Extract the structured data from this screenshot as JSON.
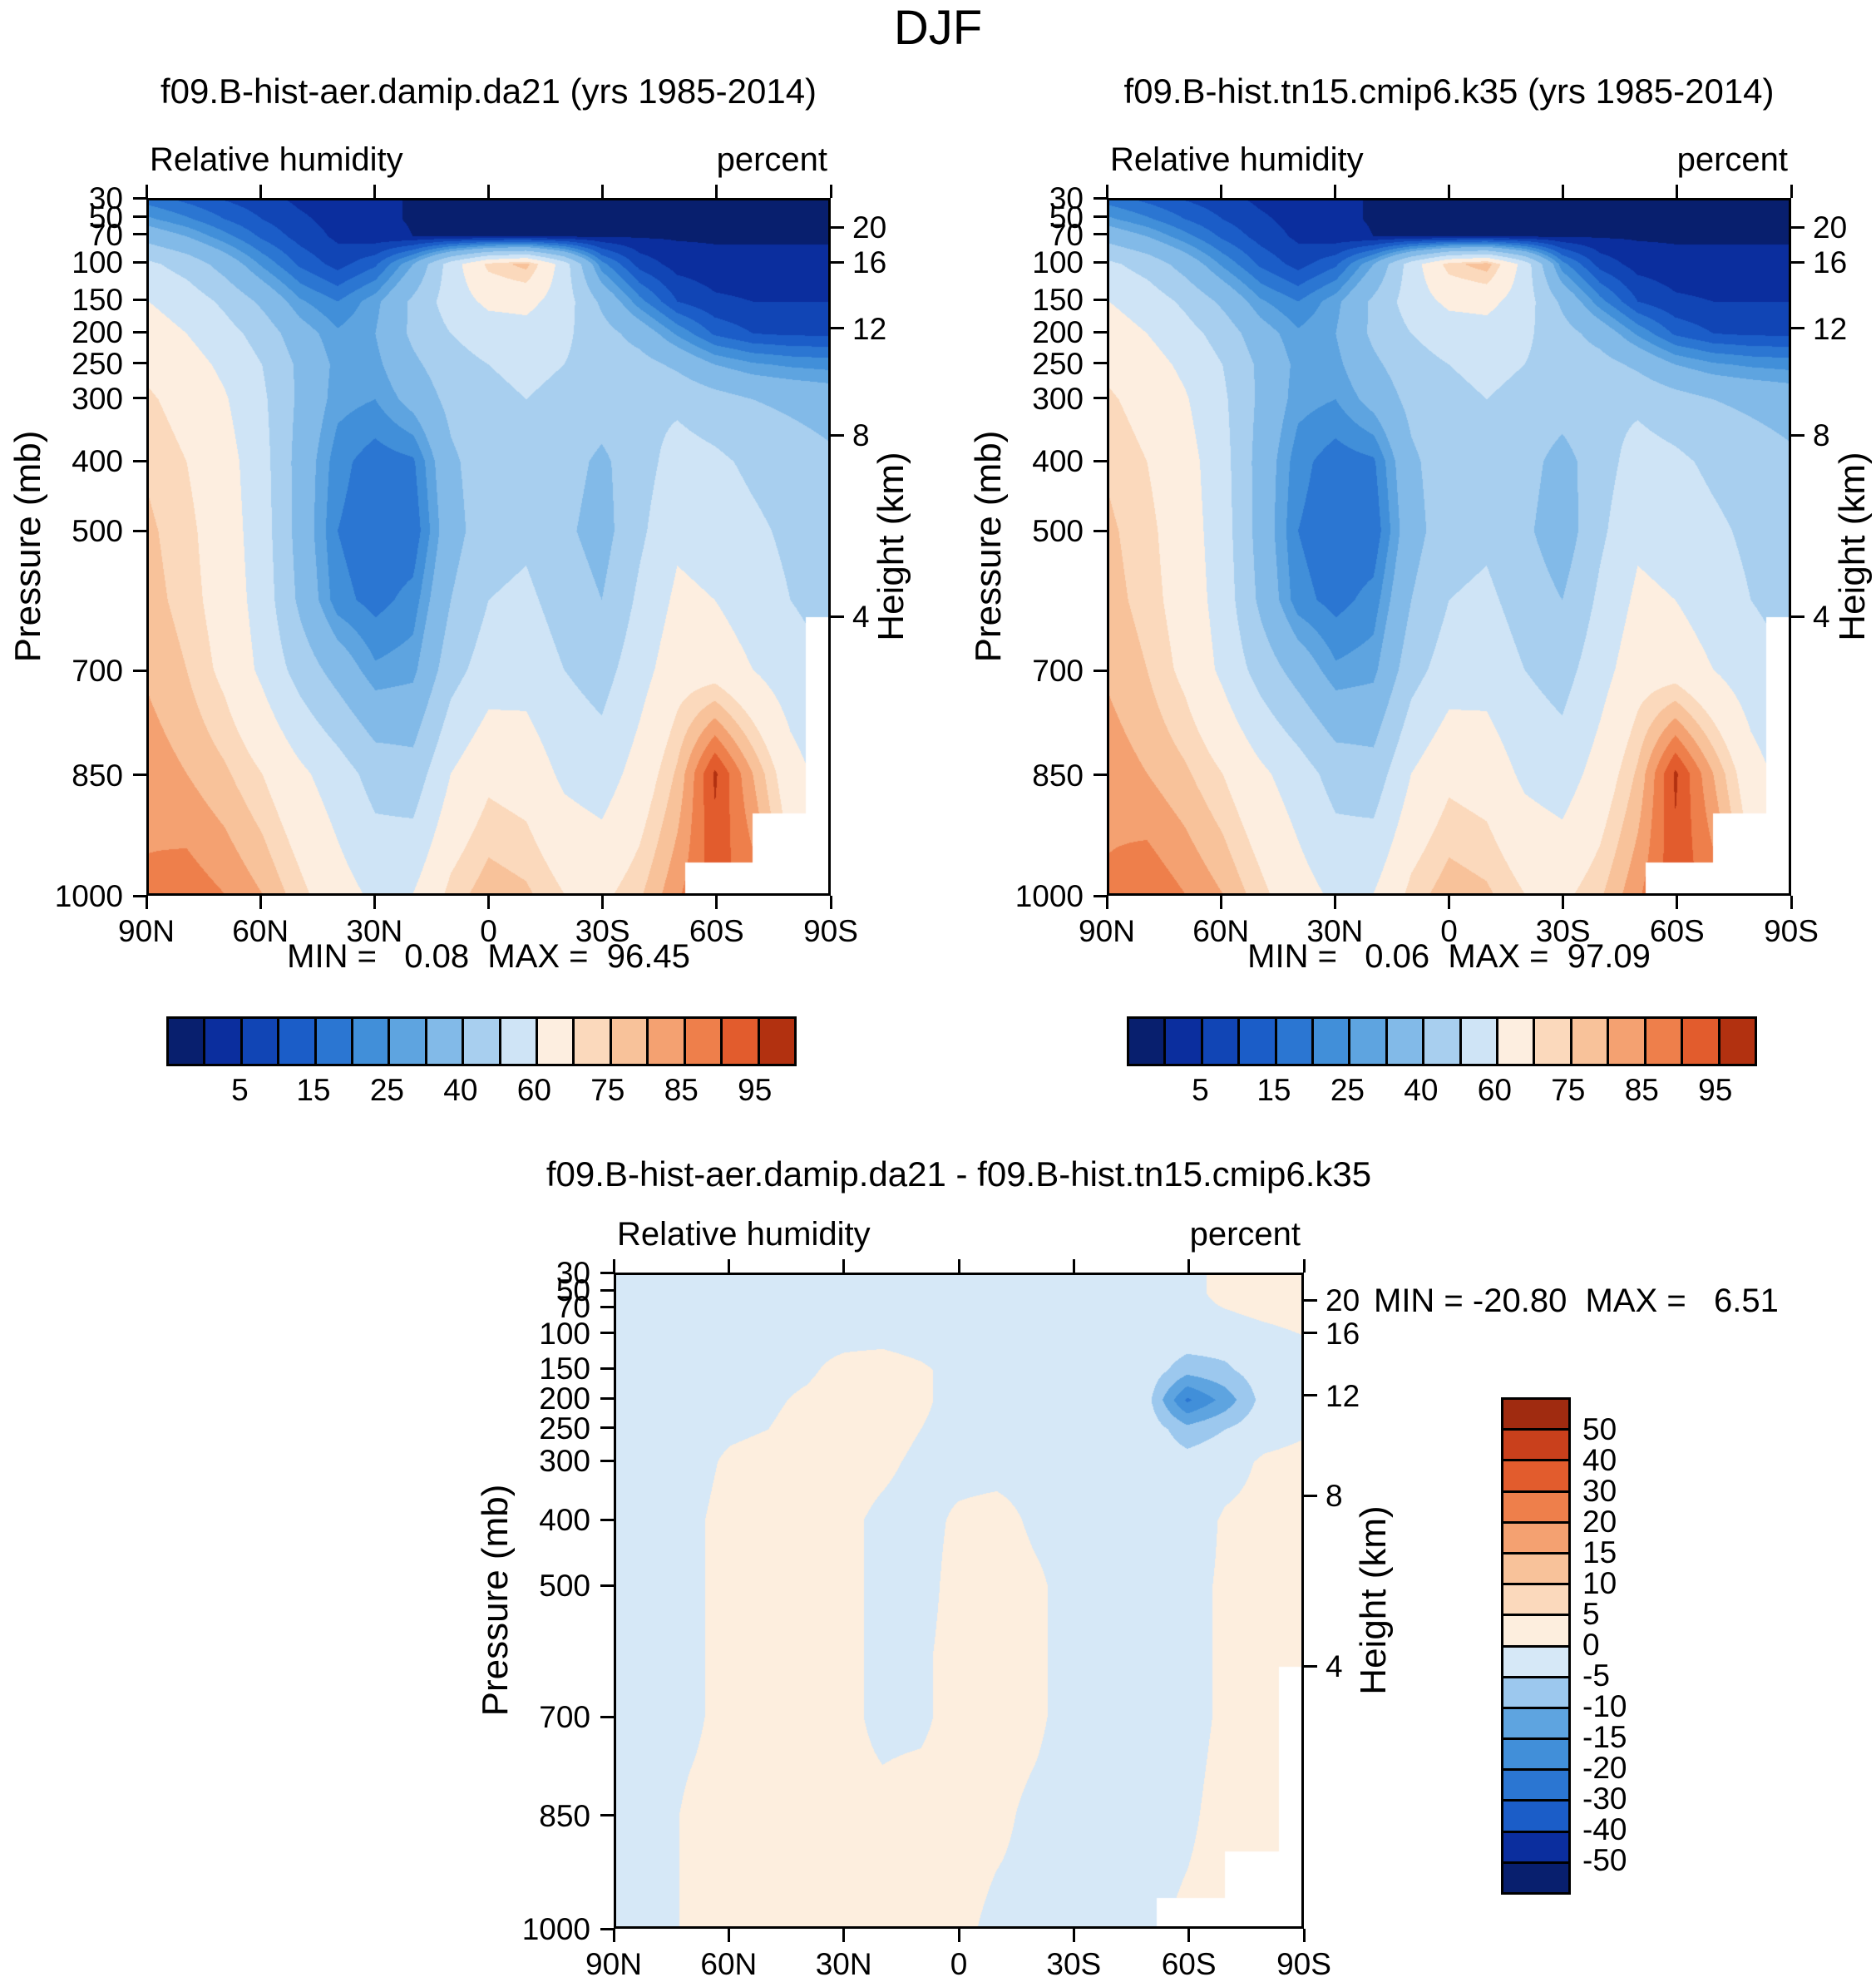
{
  "title": "DJF",
  "chart_data": {
    "type": "filled_contour",
    "season": "DJF",
    "pressure_axis_label": "Pressure (mb)",
    "height_axis_label": "Height (km)",
    "lat_tick_labels": [
      "90N",
      "60N",
      "30N",
      "0",
      "30S",
      "60S",
      "90S"
    ],
    "pressure_ticks": [
      30,
      50,
      70,
      100,
      150,
      200,
      250,
      300,
      400,
      500,
      700,
      850,
      1000
    ],
    "height_ticks": [
      20,
      16,
      12,
      8,
      4
    ],
    "grid": {
      "lats": [
        90,
        80,
        70,
        60,
        50,
        40,
        30,
        20,
        10,
        0,
        -10,
        -20,
        -30,
        -40,
        -50,
        -60,
        -70,
        -80,
        -90
      ],
      "pressures": [
        30,
        50,
        70,
        100,
        150,
        200,
        250,
        300,
        400,
        500,
        600,
        700,
        850,
        1000
      ]
    },
    "rh_levels": [
      1,
      5,
      10,
      15,
      20,
      25,
      30,
      40,
      50,
      60,
      70,
      75,
      80,
      85,
      90,
      95
    ],
    "rh_colors": [
      "#081f6e",
      "#0b2e9e",
      "#1145b5",
      "#1b5dc8",
      "#2b76d2",
      "#418fd9",
      "#5ea4e0",
      "#82bae8",
      "#a8cfef",
      "#cfe4f6",
      "#fdeee0",
      "#fbd9bc",
      "#f8c29a",
      "#f4a171",
      "#ee7f4b",
      "#e25c2d",
      "#b23110"
    ],
    "rh_colorbar_labels": [
      5,
      15,
      25,
      40,
      60,
      75,
      85,
      95
    ],
    "diff_levels": [
      -50,
      -40,
      -30,
      -20,
      -15,
      -10,
      -5,
      0,
      5,
      10,
      15,
      20,
      30,
      40,
      50
    ],
    "diff_colors": [
      "#081f6e",
      "#0b2e9e",
      "#1b5dc8",
      "#2b76d2",
      "#418fd9",
      "#5ea4e0",
      "#9cc8ee",
      "#d6e8f7",
      "#fdeede",
      "#fbd9bc",
      "#f8c29a",
      "#f4a171",
      "#ee7f4b",
      "#e25c2d",
      "#c9401c",
      "#a02b10"
    ],
    "diff_colorbar_labels": [
      50,
      40,
      30,
      20,
      15,
      10,
      5,
      0,
      -5,
      -10,
      -15,
      -20,
      -30,
      -40,
      -50
    ],
    "panels": [
      {
        "kind": "rh",
        "title": "f09.B-hist-aer.damip.da21 (yrs 1985-2014)",
        "field": "Relative humidity",
        "units": "percent",
        "stats": "MIN =   0.08  MAX =  96.45",
        "values": [
          [
            18,
            14,
            10,
            7,
            4,
            2.5,
            1.5,
            0.8,
            0.6,
            0.5,
            0.5,
            0.5,
            0.5,
            0.5,
            0.5,
            0.5,
            0.5,
            0.5,
            0.5
          ],
          [
            26,
            21,
            15,
            10,
            6,
            3,
            1.5,
            0.8,
            0.6,
            0.5,
            0.5,
            0.5,
            0.5,
            0.5,
            0.5,
            0.5,
            0.5,
            0.5,
            0.5
          ],
          [
            36,
            30,
            22,
            14,
            8,
            4,
            2,
            1,
            0.8,
            0.8,
            0.8,
            0.8,
            0.7,
            0.6,
            0.6,
            0.6,
            0.6,
            0.6,
            0.6
          ],
          [
            52,
            46,
            36,
            24,
            14,
            8,
            14,
            30,
            55,
            72,
            77,
            55,
            22,
            8,
            3,
            2,
            2,
            2,
            2
          ],
          [
            60,
            56,
            48,
            38,
            26,
            20,
            28,
            42,
            55,
            62,
            63,
            55,
            38,
            22,
            10,
            6,
            5,
            5,
            5
          ],
          [
            64,
            60,
            54,
            46,
            34,
            26,
            30,
            42,
            50,
            55,
            56,
            52,
            44,
            36,
            24,
            14,
            10,
            9,
            9
          ],
          [
            68,
            64,
            58,
            50,
            38,
            28,
            28,
            38,
            46,
            50,
            52,
            50,
            46,
            44,
            38,
            30,
            26,
            24,
            23
          ],
          [
            71,
            67,
            61,
            52,
            38,
            27,
            25,
            33,
            43,
            48,
            50,
            48,
            45,
            48,
            48,
            44,
            40,
            38,
            36
          ],
          [
            74,
            70,
            64,
            54,
            36,
            22,
            17,
            19,
            38,
            46,
            48,
            44,
            38,
            46,
            54,
            52,
            48,
            45,
            42
          ],
          [
            76,
            72,
            65,
            55,
            36,
            20,
            16,
            16,
            36,
            46,
            48,
            42,
            36,
            48,
            58,
            56,
            52,
            48,
            45
          ],
          [
            77,
            73,
            66,
            56,
            38,
            22,
            18,
            22,
            40,
            50,
            52,
            46,
            40,
            52,
            62,
            60,
            55,
            50,
            47
          ],
          [
            79,
            75,
            68,
            58,
            46,
            36,
            26,
            28,
            46,
            55,
            56,
            50,
            46,
            56,
            66,
            66,
            60,
            54,
            50
          ],
          [
            83,
            80,
            76,
            70,
            62,
            55,
            46,
            44,
            60,
            68,
            66,
            58,
            55,
            64,
            76,
            96,
            80,
            64,
            56
          ],
          [
            86,
            88,
            85,
            80,
            72,
            64,
            58,
            60,
            72,
            78,
            76,
            70,
            68,
            74,
            84,
            92,
            88,
            72,
            58
          ]
        ]
      },
      {
        "kind": "rh",
        "title": "f09.B-hist.tn15.cmip6.k35 (yrs 1985-2014)",
        "field": "Relative humidity",
        "units": "percent",
        "stats": "MIN =   0.06  MAX =  97.09",
        "values": [
          [
            18,
            14,
            10,
            7,
            4,
            2.5,
            1.5,
            0.8,
            0.6,
            0.5,
            0.5,
            0.5,
            0.5,
            0.5,
            0.5,
            0.5,
            0.5,
            0.5,
            0.5
          ],
          [
            26,
            21,
            15,
            10,
            6,
            3,
            1.5,
            0.8,
            0.6,
            0.5,
            0.5,
            0.5,
            0.5,
            0.5,
            0.5,
            0.5,
            0.5,
            0.5,
            0.5
          ],
          [
            36,
            30,
            22,
            14,
            8,
            4,
            2,
            1,
            0.8,
            0.8,
            0.8,
            0.8,
            0.7,
            0.6,
            0.6,
            0.6,
            0.6,
            0.6,
            0.6
          ],
          [
            52,
            46,
            36,
            24,
            14,
            8,
            14,
            30,
            55,
            73,
            78,
            56,
            22,
            8,
            3,
            2,
            2,
            2,
            2
          ],
          [
            60,
            56,
            48,
            38,
            26,
            20,
            28,
            42,
            55,
            62,
            63,
            55,
            38,
            22,
            10,
            6,
            5,
            5,
            5
          ],
          [
            64,
            60,
            54,
            46,
            34,
            26,
            30,
            42,
            50,
            55,
            56,
            52,
            44,
            36,
            24,
            14,
            10,
            9,
            9
          ],
          [
            68,
            64,
            58,
            50,
            38,
            28,
            28,
            38,
            46,
            50,
            52,
            50,
            46,
            44,
            38,
            30,
            26,
            24,
            23
          ],
          [
            71,
            67,
            61,
            52,
            38,
            27,
            25,
            33,
            43,
            48,
            50,
            48,
            45,
            48,
            48,
            44,
            40,
            38,
            36
          ],
          [
            74,
            70,
            64,
            54,
            36,
            22,
            17,
            19,
            38,
            46,
            48,
            44,
            36,
            46,
            54,
            52,
            48,
            45,
            42
          ],
          [
            76,
            72,
            65,
            55,
            36,
            20,
            16,
            16,
            36,
            46,
            48,
            42,
            34,
            48,
            58,
            56,
            52,
            48,
            45
          ],
          [
            77,
            73,
            66,
            56,
            38,
            22,
            18,
            22,
            40,
            50,
            52,
            46,
            40,
            52,
            62,
            60,
            55,
            50,
            47
          ],
          [
            79,
            75,
            68,
            58,
            46,
            36,
            26,
            28,
            46,
            55,
            56,
            50,
            46,
            56,
            66,
            66,
            60,
            54,
            50
          ],
          [
            83,
            80,
            76,
            70,
            62,
            55,
            46,
            44,
            60,
            68,
            66,
            58,
            55,
            64,
            76,
            96,
            80,
            64,
            56
          ],
          [
            86,
            89,
            85,
            80,
            72,
            64,
            58,
            60,
            72,
            78,
            76,
            70,
            68,
            74,
            84,
            93,
            88,
            72,
            58
          ]
        ]
      },
      {
        "kind": "diff",
        "title": "f09.B-hist-aer.damip.da21 - f09.B-hist.tn15.cmip6.k35",
        "field": "Relative humidity",
        "units": "percent",
        "stats": "MIN = -20.80  MAX =   6.51",
        "values": [
          [
            -0.8,
            -0.8,
            -0.8,
            -0.8,
            -0.8,
            -0.8,
            -0.8,
            -0.8,
            -0.8,
            -0.8,
            -0.8,
            -0.8,
            -0.8,
            -0.8,
            -0.8,
            -0.5,
            0.5,
            1.5,
            2
          ],
          [
            -0.8,
            -0.8,
            -0.8,
            -0.8,
            -0.8,
            -0.8,
            -0.8,
            -0.8,
            -0.8,
            -0.8,
            -0.8,
            -0.8,
            -0.8,
            -0.8,
            -0.8,
            -0.5,
            0.5,
            1.5,
            2
          ],
          [
            -1,
            -1,
            -1,
            -1,
            -1,
            -1,
            -1,
            -1,
            -1,
            -1,
            -1,
            -1,
            -1,
            -1,
            -1,
            -0.5,
            0,
            1,
            1.5
          ],
          [
            -1.5,
            -1.5,
            -1.2,
            -1,
            -1,
            -1,
            -1,
            -1,
            -1.5,
            -2,
            -2,
            -1.5,
            -1,
            -1,
            -1,
            -1.5,
            -2,
            -1,
            0
          ],
          [
            -1.5,
            -1.5,
            -1.2,
            -1,
            -1,
            -0.5,
            1,
            1.5,
            0.5,
            -1,
            -1.5,
            -1.5,
            -1.2,
            -1,
            -2,
            -8,
            -6,
            -2,
            -0.5
          ],
          [
            -1.5,
            -1.5,
            -1.2,
            -1,
            -0.5,
            0.5,
            1.5,
            1.5,
            0.5,
            -1,
            -1.2,
            -1.5,
            -1.2,
            -1,
            -4,
            -21,
            -13,
            -3,
            -0.5
          ],
          [
            -1.5,
            -1.2,
            -1,
            -0.5,
            0,
            1,
            1.5,
            1,
            0,
            -1,
            -1.2,
            -1.2,
            -1,
            -1,
            -2,
            -8,
            -5,
            -1.5,
            -0.5
          ],
          [
            -1.5,
            -1.2,
            -1,
            0.5,
            1,
            1.5,
            1,
            0.5,
            -0.5,
            -1,
            -1,
            -1,
            -1,
            -1,
            -1.5,
            -3,
            -1.5,
            0.5,
            1
          ],
          [
            -1.5,
            -1.2,
            -0.5,
            1,
            1.5,
            1,
            0.5,
            -0.5,
            -1,
            0.5,
            1,
            -0.5,
            -1,
            -1.5,
            -1.5,
            -2,
            0.5,
            1,
            1
          ],
          [
            -1.5,
            -1,
            -0.5,
            1,
            1.5,
            1,
            0.5,
            -0.5,
            -1,
            1,
            1.5,
            0.5,
            -1,
            -1.5,
            -1.5,
            -1,
            0.5,
            1,
            1
          ],
          [
            -1.5,
            -1,
            -0.5,
            1,
            1.5,
            1,
            0.5,
            -0.5,
            -0.5,
            1,
            1.5,
            0.5,
            -1,
            -1.5,
            -1.5,
            -1,
            0.5,
            1,
            1
          ],
          [
            -1.2,
            -1,
            -0.5,
            1,
            1.5,
            1,
            0.5,
            -0.5,
            -0.5,
            1,
            1,
            0.5,
            -1,
            -1.5,
            -1.5,
            -1,
            0.5,
            1.5,
            1.5
          ],
          [
            -1.2,
            -1,
            0.5,
            1,
            1,
            0.5,
            0.5,
            0.5,
            1,
            1,
            0.5,
            -0.5,
            -1,
            -1,
            -1,
            -0.5,
            1,
            1.5,
            2
          ],
          [
            -1,
            -1,
            0.5,
            1,
            1,
            0.5,
            1,
            1,
            1,
            0.5,
            -0.5,
            -0.5,
            -1,
            -1,
            -0.5,
            0.5,
            1,
            2,
            2
          ]
        ]
      }
    ]
  }
}
